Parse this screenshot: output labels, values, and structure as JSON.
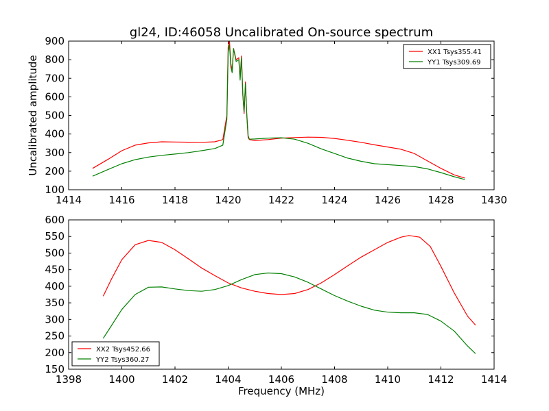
{
  "title": "gl24, ID:46058 Uncalibrated On-source spectrum",
  "chart_data": [
    {
      "type": "line",
      "ylabel": "Uncalibrated amplitude",
      "xlabel": "",
      "xlim": [
        1414,
        1430
      ],
      "ylim": [
        100,
        900
      ],
      "xticks": [
        1414,
        1416,
        1418,
        1420,
        1422,
        1424,
        1426,
        1428,
        1430
      ],
      "yticks": [
        100,
        200,
        300,
        400,
        500,
        600,
        700,
        800,
        900
      ],
      "legend_position": "top-right",
      "series": [
        {
          "name": "XX1 Tsys355.41",
          "color": "#ff0000",
          "x": [
            1414.9,
            1415.5,
            1416.0,
            1416.5,
            1417.0,
            1417.5,
            1418.0,
            1418.5,
            1419.0,
            1419.5,
            1419.8,
            1419.95,
            1420.0,
            1420.05,
            1420.1,
            1420.15,
            1420.2,
            1420.3,
            1420.4,
            1420.45,
            1420.5,
            1420.55,
            1420.6,
            1420.65,
            1420.7,
            1420.75,
            1420.8,
            1421.0,
            1421.5,
            1422.0,
            1422.5,
            1423.0,
            1423.5,
            1424.0,
            1424.5,
            1425.0,
            1425.5,
            1426.0,
            1426.5,
            1427.0,
            1427.5,
            1428.0,
            1428.5,
            1428.9
          ],
          "y": [
            215,
            265,
            310,
            340,
            352,
            358,
            357,
            356,
            355,
            358,
            370,
            500,
            870,
            900,
            780,
            740,
            860,
            800,
            810,
            700,
            820,
            620,
            510,
            680,
            500,
            380,
            370,
            365,
            370,
            378,
            381,
            383,
            382,
            376,
            366,
            355,
            342,
            330,
            318,
            295,
            255,
            215,
            180,
            163
          ]
        },
        {
          "name": "YY1 Tsys309.69",
          "color": "#008000",
          "x": [
            1414.9,
            1415.5,
            1416.0,
            1416.5,
            1417.0,
            1417.5,
            1418.0,
            1418.5,
            1419.0,
            1419.5,
            1419.8,
            1419.95,
            1420.0,
            1420.05,
            1420.1,
            1420.15,
            1420.2,
            1420.3,
            1420.4,
            1420.45,
            1420.5,
            1420.55,
            1420.6,
            1420.65,
            1420.7,
            1420.75,
            1420.8,
            1421.0,
            1421.5,
            1422.0,
            1422.5,
            1423.0,
            1423.5,
            1424.0,
            1424.5,
            1425.0,
            1425.5,
            1426.0,
            1426.5,
            1427.0,
            1427.5,
            1428.0,
            1428.5,
            1428.9
          ],
          "y": [
            173,
            210,
            240,
            262,
            276,
            285,
            292,
            300,
            310,
            322,
            340,
            480,
            840,
            880,
            760,
            730,
            860,
            790,
            800,
            690,
            810,
            610,
            520,
            670,
            510,
            390,
            372,
            373,
            378,
            380,
            372,
            350,
            320,
            295,
            270,
            253,
            240,
            235,
            230,
            225,
            212,
            192,
            170,
            155
          ]
        }
      ]
    },
    {
      "type": "line",
      "ylabel": "",
      "xlabel": "Frequency (MHz)",
      "xlim": [
        1398,
        1414
      ],
      "ylim": [
        150,
        600
      ],
      "xticks": [
        1398,
        1400,
        1402,
        1404,
        1406,
        1408,
        1410,
        1412,
        1414
      ],
      "yticks": [
        150,
        200,
        250,
        300,
        350,
        400,
        450,
        500,
        550,
        600
      ],
      "legend_position": "bottom-left",
      "series": [
        {
          "name": "XX2 Tsys452.66",
          "color": "#ff0000",
          "x": [
            1399.3,
            1399.6,
            1400.0,
            1400.5,
            1401.0,
            1401.5,
            1402.0,
            1402.5,
            1403.0,
            1403.5,
            1404.0,
            1404.5,
            1405.0,
            1405.5,
            1406.0,
            1406.5,
            1407.0,
            1407.5,
            1408.0,
            1408.5,
            1409.0,
            1409.5,
            1410.0,
            1410.5,
            1410.8,
            1411.2,
            1411.6,
            1412.0,
            1412.5,
            1413.0,
            1413.3
          ],
          "y": [
            370,
            420,
            480,
            525,
            538,
            532,
            510,
            483,
            455,
            432,
            410,
            395,
            385,
            378,
            375,
            378,
            390,
            410,
            435,
            462,
            488,
            510,
            532,
            548,
            553,
            548,
            520,
            460,
            380,
            310,
            283
          ]
        },
        {
          "name": "YY2 Tsys360.27",
          "color": "#008000",
          "x": [
            1399.3,
            1399.6,
            1400.0,
            1400.5,
            1401.0,
            1401.5,
            1402.0,
            1402.5,
            1403.0,
            1403.5,
            1404.0,
            1404.5,
            1405.0,
            1405.5,
            1406.0,
            1406.5,
            1407.0,
            1407.5,
            1408.0,
            1408.5,
            1409.0,
            1409.5,
            1410.0,
            1410.5,
            1411.0,
            1411.5,
            1412.0,
            1412.5,
            1413.0,
            1413.3
          ],
          "y": [
            243,
            280,
            330,
            375,
            397,
            398,
            392,
            387,
            385,
            390,
            402,
            420,
            435,
            440,
            438,
            428,
            412,
            392,
            372,
            355,
            340,
            328,
            322,
            320,
            320,
            315,
            295,
            265,
            220,
            197
          ]
        }
      ]
    }
  ]
}
